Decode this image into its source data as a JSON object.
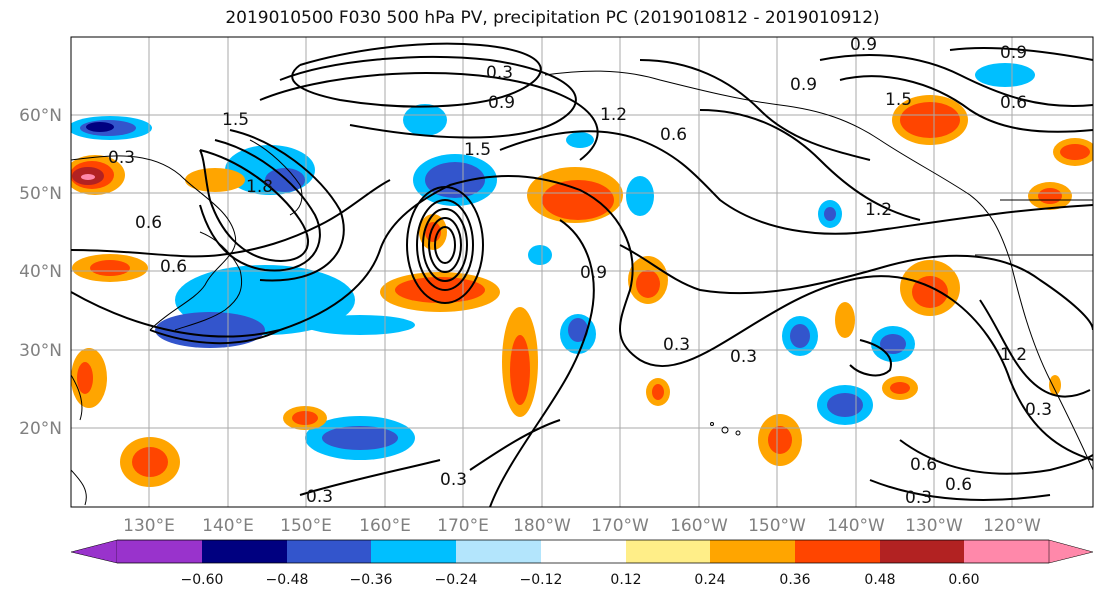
{
  "title": "2019010500 F030 500 hPa PV, precipitation PC (2019010812 - 2019010912)",
  "map": {
    "lat_labels": [
      "60°N",
      "50°N",
      "40°N",
      "30°N",
      "20°N"
    ],
    "lon_labels": [
      "130°E",
      "140°E",
      "150°E",
      "160°E",
      "170°E",
      "180°W",
      "170°W",
      "160°W",
      "150°W",
      "140°W",
      "130°W",
      "120°W"
    ],
    "contour_labels": [
      "0.3",
      "0.6",
      "0.9",
      "1.2",
      "1.5",
      "1.8"
    ],
    "grid": true,
    "projection": "Plate Carree, Pacific-centred"
  },
  "colorbar": {
    "ticks": [
      "−0.60",
      "−0.48",
      "−0.36",
      "−0.24",
      "−0.12",
      "0.12",
      "0.24",
      "0.36",
      "0.48",
      "0.60"
    ],
    "colors": [
      "#9933cc",
      "#000080",
      "#3355cc",
      "#00bfff",
      "#b3e5fc",
      "#ffffff",
      "#ffee88",
      "#ffa500",
      "#ff4500",
      "#b22222",
      "#ff88aa"
    ],
    "extend": "both"
  }
}
